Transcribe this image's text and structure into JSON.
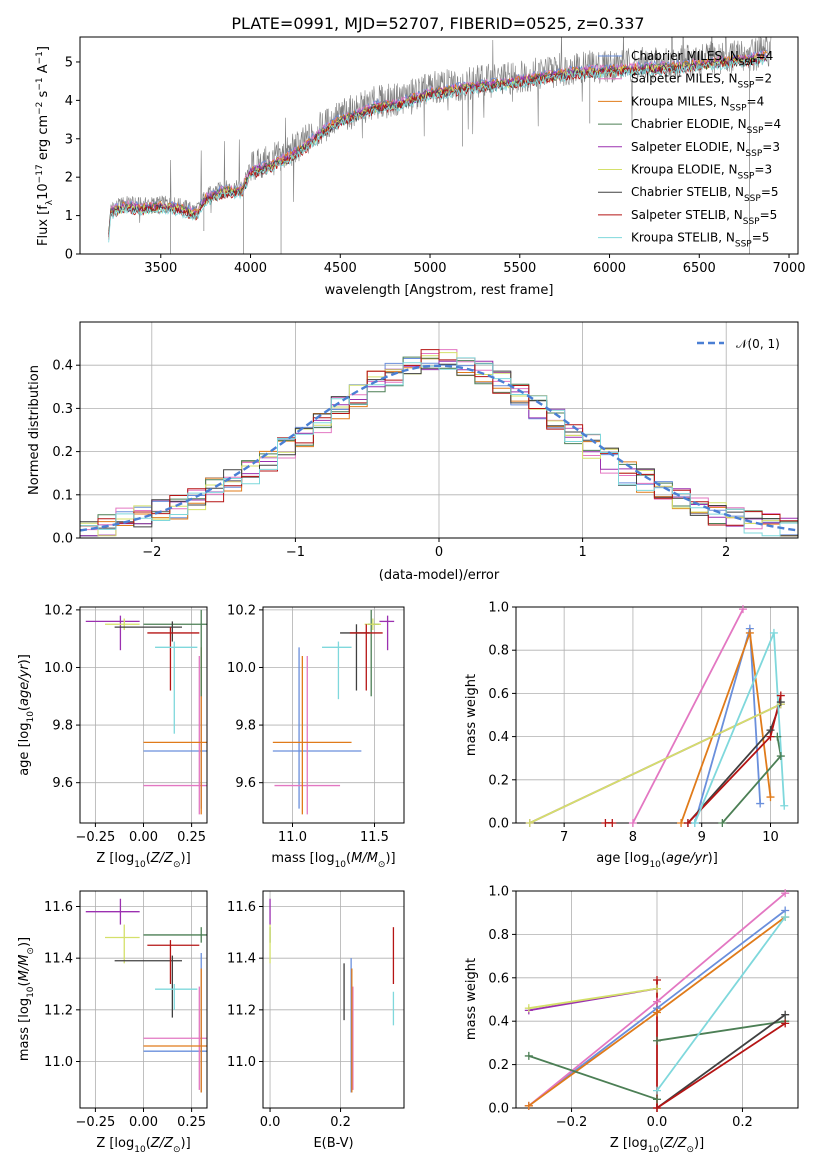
{
  "title": "PLATE=0991, MJD=52707, FIBERID=0525, z=0.337",
  "colors": {
    "Chabrier MILES": "#6a8fdc",
    "Salpeter MILES": "#e377c2",
    "Kroupa MILES": "#e07b1a",
    "Chabrier ELODIE": "#4c7f55",
    "Salpeter ELODIE": "#9b30b0",
    "Kroupa ELODIE": "#d4e06a",
    "Chabrier STELIB": "#404040",
    "Salpeter STELIB": "#b51414",
    "Kroupa STELIB": "#7fd8dc",
    "data": "#808080",
    "normal": "#4a7fd4"
  },
  "chart_data": [
    {
      "id": "spectrum",
      "type": "line",
      "xlabel": "wavelength [Angstrom, rest frame]",
      "ylabel": "Flux [f_λ 10^-17 erg cm^-2 s^-1 A^-1]",
      "xlim": [
        3050,
        7050
      ],
      "ylim": [
        0,
        5.65
      ],
      "xticks": [
        3500,
        4000,
        4500,
        5000,
        5500,
        6000,
        6500,
        7000
      ],
      "yticks": [
        0,
        1,
        2,
        3,
        4,
        5
      ],
      "grid": false,
      "legend_position": "right",
      "series": [
        {
          "name": "Chabrier MILES, N_SSP=4"
        },
        {
          "name": "Salpeter MILES, N_SSP=2"
        },
        {
          "name": "Kroupa MILES, N_SSP=4"
        },
        {
          "name": "Chabrier ELODIE, N_SSP=4"
        },
        {
          "name": "Salpeter ELODIE, N_SSP=3"
        },
        {
          "name": "Kroupa ELODIE, N_SSP=3"
        },
        {
          "name": "Chabrier STELIB, N_SSP=5"
        },
        {
          "name": "Salpeter STELIB, N_SSP=5"
        },
        {
          "name": "Kroupa STELIB, N_SSP=5"
        }
      ],
      "continuum": {
        "x": [
          3200,
          3220,
          3300,
          3400,
          3500,
          3600,
          3700,
          3750,
          3850,
          3950,
          4000,
          4100,
          4200,
          4300,
          4400,
          4500,
          4600,
          4700,
          4800,
          4900,
          5000,
          5200,
          5400,
          5600,
          5800,
          6000,
          6200,
          6400,
          6600,
          6800,
          6900
        ],
        "y": [
          0,
          1.2,
          1.35,
          1.3,
          1.35,
          1.3,
          1.15,
          1.55,
          1.75,
          1.75,
          2.25,
          2.4,
          2.6,
          2.9,
          3.3,
          3.6,
          3.75,
          3.95,
          4.0,
          4.15,
          4.3,
          4.45,
          4.55,
          4.7,
          4.85,
          4.9,
          4.95,
          5.0,
          5.1,
          5.2,
          5.3
        ]
      }
    },
    {
      "id": "residuals",
      "type": "line",
      "xlabel": "(data-model)/error",
      "ylabel": "Normed distribution",
      "xlim": [
        -2.5,
        2.5
      ],
      "ylim": [
        0,
        0.5
      ],
      "xticks": [
        -2,
        -1,
        0,
        1,
        2
      ],
      "yticks": [
        0.0,
        0.1,
        0.2,
        0.3,
        0.4
      ],
      "grid": true,
      "legend_position": "top-right",
      "normal_label": "N(0,1)",
      "hist_shape": [
        0.02,
        0.03,
        0.04,
        0.05,
        0.06,
        0.07,
        0.09,
        0.11,
        0.13,
        0.15,
        0.18,
        0.21,
        0.24,
        0.27,
        0.3,
        0.33,
        0.36,
        0.38,
        0.4,
        0.41,
        0.41,
        0.4,
        0.38,
        0.36,
        0.33,
        0.3,
        0.27,
        0.24,
        0.21,
        0.18,
        0.15,
        0.13,
        0.11,
        0.09,
        0.07,
        0.06,
        0.05,
        0.04,
        0.03,
        0.02
      ]
    },
    {
      "id": "age-vs-Z",
      "type": "scatter",
      "xlabel": "Z [log10(Z/Z⊙)]",
      "ylabel": "age [log10(age/yr)]",
      "xlim": [
        -0.33,
        0.33
      ],
      "ylim": [
        9.46,
        10.21
      ],
      "xticks": [
        -0.25,
        0.0,
        0.25
      ],
      "xticklabels": [
        "−0.25",
        "0.00",
        "0.25"
      ],
      "yticks": [
        9.6,
        9.8,
        10.0,
        10.2
      ],
      "grid": true,
      "points": [
        {
          "model": "Chabrier MILES",
          "x": 0.3,
          "y": 9.71,
          "xerr": [
            0.3,
            0.3
          ],
          "yerr": [
            0.2,
            0.36
          ]
        },
        {
          "model": "Salpeter MILES",
          "x": 0.29,
          "y": 9.59,
          "xerr": [
            0.29,
            0.3
          ],
          "yerr": [
            0.1,
            0.45
          ]
        },
        {
          "model": "Kroupa MILES",
          "x": 0.3,
          "y": 9.74,
          "xerr": [
            0.3,
            0.3
          ],
          "yerr": [
            0.25,
            0.33
          ]
        },
        {
          "model": "Chabrier ELODIE",
          "x": 0.3,
          "y": 10.15,
          "xerr": [
            0.3,
            0.3
          ],
          "yerr": [
            0.25,
            0.05
          ]
        },
        {
          "model": "Salpeter ELODIE",
          "x": -0.12,
          "y": 10.16,
          "xerr": [
            0.18,
            0.1
          ],
          "yerr": [
            0.1,
            0.02
          ]
        },
        {
          "model": "Kroupa ELODIE",
          "x": -0.1,
          "y": 10.15,
          "xerr": [
            0.1,
            0.08
          ],
          "yerr": [
            0.02,
            0.02
          ]
        },
        {
          "model": "Chabrier STELIB",
          "x": 0.15,
          "y": 10.14,
          "xerr": [
            0.3,
            0.05
          ],
          "yerr": [
            0.05,
            0.02
          ]
        },
        {
          "model": "Salpeter STELIB",
          "x": 0.14,
          "y": 10.12,
          "xerr": [
            0.12,
            0.15
          ],
          "yerr": [
            0.2,
            0.02
          ]
        },
        {
          "model": "Kroupa STELIB",
          "x": 0.16,
          "y": 10.07,
          "xerr": [
            0.1,
            0.12
          ],
          "yerr": [
            0.3,
            0.02
          ]
        }
      ]
    },
    {
      "id": "age-vs-mass",
      "type": "scatter",
      "xlabel": "mass [log10(M/M⊙)]",
      "ylabel": "",
      "xlim": [
        10.82,
        11.68
      ],
      "ylim": [
        9.46,
        10.21
      ],
      "xticks": [
        11.0,
        11.5
      ],
      "xticklabels": [
        "11.0",
        "11.5"
      ],
      "yticks": [
        9.6,
        9.8,
        10.0,
        10.2
      ],
      "grid": true,
      "points": [
        {
          "model": "Chabrier MILES",
          "x": 11.04,
          "y": 9.71,
          "xerr": [
            0.16,
            0.38
          ],
          "yerr": [
            0.2,
            0.36
          ]
        },
        {
          "model": "Salpeter MILES",
          "x": 11.09,
          "y": 9.59,
          "xerr": [
            0.2,
            0.2
          ],
          "yerr": [
            0.1,
            0.45
          ]
        },
        {
          "model": "Kroupa MILES",
          "x": 11.06,
          "y": 9.74,
          "xerr": [
            0.18,
            0.3
          ],
          "yerr": [
            0.25,
            0.3
          ]
        },
        {
          "model": "Chabrier ELODIE",
          "x": 11.48,
          "y": 10.15,
          "xerr": [
            0.02,
            0.05
          ],
          "yerr": [
            0.25,
            0.05
          ]
        },
        {
          "model": "Salpeter ELODIE",
          "x": 11.58,
          "y": 10.16,
          "xerr": [
            0.05,
            0.04
          ],
          "yerr": [
            0.1,
            0.02
          ]
        },
        {
          "model": "Kroupa ELODIE",
          "x": 11.49,
          "y": 10.15,
          "xerr": [
            0.05,
            0.05
          ],
          "yerr": [
            0.02,
            0.02
          ]
        },
        {
          "model": "Chabrier STELIB",
          "x": 11.39,
          "y": 10.12,
          "xerr": [
            0.1,
            0.08
          ],
          "yerr": [
            0.2,
            0.03
          ]
        },
        {
          "model": "Salpeter STELIB",
          "x": 11.45,
          "y": 10.12,
          "xerr": [
            0.1,
            0.1
          ],
          "yerr": [
            0.2,
            0.03
          ]
        },
        {
          "model": "Kroupa STELIB",
          "x": 11.28,
          "y": 10.07,
          "xerr": [
            0.1,
            0.08
          ],
          "yerr": [
            0.18,
            0.02
          ]
        }
      ]
    },
    {
      "id": "weight-vs-age",
      "type": "line",
      "xlabel": "age [log10(age/yr)]",
      "ylabel": "mass weight",
      "xlim": [
        6.3,
        10.4
      ],
      "ylim": [
        0,
        1
      ],
      "xticks": [
        7,
        8,
        9,
        10
      ],
      "yticks": [
        0.0,
        0.2,
        0.4,
        0.6,
        0.8,
        1.0
      ],
      "grid": true,
      "series": [
        {
          "model": "Chabrier MILES",
          "x": [
            8.9,
            9.7,
            9.85
          ],
          "y": [
            0.0,
            0.9,
            0.09
          ]
        },
        {
          "model": "Salpeter MILES",
          "x": [
            8.0,
            9.6
          ],
          "y": [
            0.0,
            0.99
          ]
        },
        {
          "model": "Kroupa MILES",
          "x": [
            8.7,
            9.7,
            10.0
          ],
          "y": [
            0.0,
            0.88,
            0.12
          ]
        },
        {
          "model": "Chabrier ELODIE",
          "x": [
            9.3,
            10.15,
            10.1
          ],
          "y": [
            0.0,
            0.31,
            0.4
          ]
        },
        {
          "model": "Salpeter ELODIE",
          "x": [
            6.5,
            10.15
          ],
          "y": [
            0.0,
            0.55
          ]
        },
        {
          "model": "Kroupa ELODIE",
          "x": [
            6.5,
            10.15
          ],
          "y": [
            0.0,
            0.55
          ]
        },
        {
          "model": "Chabrier STELIB",
          "x": [
            8.8,
            10.0,
            10.15
          ],
          "y": [
            0.0,
            0.43,
            0.56
          ]
        },
        {
          "model": "Salpeter STELIB",
          "x": [
            7.6,
            7.7
          ],
          "y": [
            0.0,
            0.0
          ]
        },
        {
          "model": "Salpeter STELIB",
          "x": [
            8.8,
            10.0,
            10.15
          ],
          "y": [
            0.0,
            0.4,
            0.59
          ]
        },
        {
          "model": "Kroupa STELIB",
          "x": [
            8.9,
            10.05,
            10.2
          ],
          "y": [
            0.0,
            0.88,
            0.08
          ]
        }
      ]
    },
    {
      "id": "mass-vs-Z",
      "type": "scatter",
      "xlabel": "Z [log10(Z/Z⊙)]",
      "ylabel": "mass [log10(M/M⊙)]",
      "xlim": [
        -0.33,
        0.33
      ],
      "ylim": [
        10.82,
        11.66
      ],
      "xticks": [
        -0.25,
        0.0,
        0.25
      ],
      "xticklabels": [
        "−0.25",
        "0.00",
        "0.25"
      ],
      "yticks": [
        11.0,
        11.2,
        11.4,
        11.6
      ],
      "grid": true,
      "points": [
        {
          "model": "Chabrier MILES",
          "x": 0.3,
          "y": 11.04,
          "xerr": [
            0.3,
            0.3
          ],
          "yerr": [
            0.16,
            0.38
          ]
        },
        {
          "model": "Salpeter MILES",
          "x": 0.29,
          "y": 11.09,
          "xerr": [
            0.29,
            0.3
          ],
          "yerr": [
            0.2,
            0.2
          ]
        },
        {
          "model": "Kroupa MILES",
          "x": 0.3,
          "y": 11.06,
          "xerr": [
            0.3,
            0.3
          ],
          "yerr": [
            0.18,
            0.3
          ]
        },
        {
          "model": "Chabrier ELODIE",
          "x": 0.3,
          "y": 11.49,
          "xerr": [
            0.3,
            0.3
          ],
          "yerr": [
            0.03,
            0.03
          ]
        },
        {
          "model": "Salpeter ELODIE",
          "x": -0.12,
          "y": 11.58,
          "xerr": [
            0.18,
            0.1
          ],
          "yerr": [
            0.05,
            0.05
          ]
        },
        {
          "model": "Kroupa ELODIE",
          "x": -0.1,
          "y": 11.48,
          "xerr": [
            0.1,
            0.08
          ],
          "yerr": [
            0.1,
            0.05
          ]
        },
        {
          "model": "Chabrier STELIB",
          "x": 0.15,
          "y": 11.39,
          "xerr": [
            0.3,
            0.05
          ],
          "yerr": [
            0.22,
            0.02
          ]
        },
        {
          "model": "Salpeter STELIB",
          "x": 0.14,
          "y": 11.45,
          "xerr": [
            0.12,
            0.15
          ],
          "yerr": [
            0.15,
            0.02
          ]
        },
        {
          "model": "Kroupa STELIB",
          "x": 0.16,
          "y": 11.28,
          "xerr": [
            0.1,
            0.12
          ],
          "yerr": [
            0.08,
            0.02
          ]
        }
      ]
    },
    {
      "id": "mass-vs-EBV",
      "type": "scatter",
      "xlabel": "E(B-V)",
      "ylabel": "",
      "xlim": [
        -0.02,
        0.38
      ],
      "ylim": [
        10.82,
        11.66
      ],
      "xticks": [
        0.0,
        0.2
      ],
      "xticklabels": [
        "0.0",
        "0.2"
      ],
      "yticks": [
        11.0,
        11.2,
        11.4,
        11.6
      ],
      "grid": true,
      "points": [
        {
          "model": "Chabrier MILES",
          "x": 0.23,
          "y": 11.04,
          "yerr": [
            0.16,
            0.36
          ]
        },
        {
          "model": "Salpeter MILES",
          "x": 0.235,
          "y": 11.09,
          "yerr": [
            0.2,
            0.2
          ]
        },
        {
          "model": "Kroupa MILES",
          "x": 0.232,
          "y": 11.06,
          "yerr": [
            0.18,
            0.3
          ]
        },
        {
          "model": "Chabrier ELODIE",
          "x": 0.0,
          "y": 11.49,
          "yerr": [
            0.03,
            0.03
          ]
        },
        {
          "model": "Salpeter ELODIE",
          "x": 0.0,
          "y": 11.58,
          "yerr": [
            0.05,
            0.05
          ]
        },
        {
          "model": "Kroupa ELODIE",
          "x": 0.0,
          "y": 11.48,
          "yerr": [
            0.1,
            0.05
          ]
        },
        {
          "model": "Chabrier STELIB",
          "x": 0.21,
          "y": 11.28,
          "yerr": [
            0.12,
            0.1
          ]
        },
        {
          "model": "Salpeter STELIB",
          "x": 0.35,
          "y": 11.42,
          "yerr": [
            0.12,
            0.1
          ]
        },
        {
          "model": "Kroupa STELIB",
          "x": 0.35,
          "y": 11.22,
          "yerr": [
            0.08,
            0.05
          ]
        }
      ]
    },
    {
      "id": "weight-vs-Z",
      "type": "line",
      "xlabel": "Z [log10(Z/Z⊙)]",
      "ylabel": "mass weight",
      "xlim": [
        -0.33,
        0.33
      ],
      "ylim": [
        0,
        1
      ],
      "xticks": [
        -0.2,
        0.0,
        0.2
      ],
      "xticklabels": [
        "−0.2",
        "0.0",
        "0.2"
      ],
      "yticks": [
        0.0,
        0.2,
        0.4,
        0.6,
        0.8,
        1.0
      ],
      "grid": true,
      "series": [
        {
          "model": "Chabrier MILES",
          "x": [
            -0.3,
            0.0,
            0.3
          ],
          "y": [
            0.01,
            0.46,
            0.91
          ]
        },
        {
          "model": "Salpeter MILES",
          "x": [
            -0.3,
            0.0,
            0.3
          ],
          "y": [
            0.01,
            0.49,
            0.99
          ]
        },
        {
          "model": "Kroupa MILES",
          "x": [
            -0.3,
            0.0,
            0.3
          ],
          "y": [
            0.01,
            0.44,
            0.88
          ]
        },
        {
          "model": "Chabrier ELODIE",
          "x": [
            -0.3,
            0.0
          ],
          "y": [
            0.24,
            0.04
          ]
        },
        {
          "model": "Chabrier ELODIE",
          "x": [
            0.0,
            0.3
          ],
          "y": [
            0.31,
            0.4
          ]
        },
        {
          "model": "Salpeter ELODIE",
          "x": [
            -0.3,
            0.0
          ],
          "y": [
            0.45,
            0.55
          ]
        },
        {
          "model": "Kroupa ELODIE",
          "x": [
            -0.3,
            0.0
          ],
          "y": [
            0.46,
            0.55
          ]
        },
        {
          "model": "Chabrier STELIB",
          "x": [
            0.0,
            0.3
          ],
          "y": [
            0.0,
            0.43
          ]
        },
        {
          "model": "Salpeter STELIB",
          "x": [
            0.0,
            0.0
          ],
          "y": [
            0.0,
            0.59
          ]
        },
        {
          "model": "Salpeter STELIB",
          "x": [
            0.0,
            0.3
          ],
          "y": [
            0.0,
            0.39
          ]
        },
        {
          "model": "Kroupa STELIB",
          "x": [
            0.0,
            0.3
          ],
          "y": [
            0.08,
            0.88
          ]
        }
      ]
    }
  ]
}
